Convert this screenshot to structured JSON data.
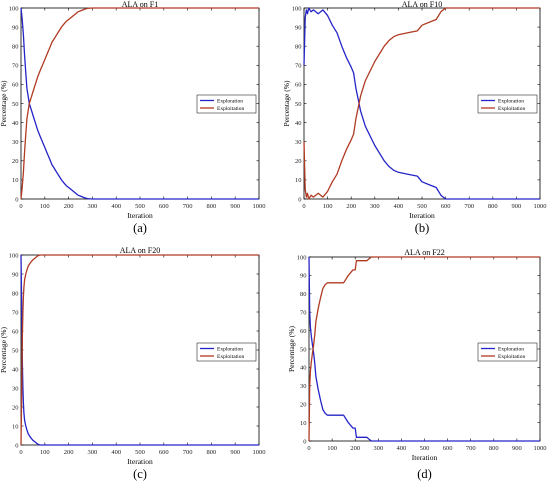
{
  "colors": {
    "exploration": "#2424c8",
    "exploitation": "#b03a22",
    "axis": "#000000",
    "grid_bg": "#ffffff",
    "tick_text": "#222222"
  },
  "chart_data": [
    {
      "type": "line",
      "panel_label": "(a)",
      "title": "ALA on F1",
      "xlabel": "Iteration",
      "ylabel": "Percentage (%)",
      "xlim": [
        0,
        1000
      ],
      "ylim": [
        0,
        100
      ],
      "xticks": [
        0,
        100,
        200,
        300,
        400,
        500,
        600,
        700,
        800,
        900,
        1000
      ],
      "yticks": [
        0,
        10,
        20,
        30,
        40,
        50,
        60,
        70,
        80,
        90,
        100
      ],
      "grid": false,
      "legend_position": "center-right",
      "series": [
        {
          "name": "Exploration",
          "color_key": "exploration",
          "x": [
            0,
            5,
            10,
            15,
            20,
            25,
            30,
            35,
            40,
            45,
            50,
            60,
            70,
            80,
            90,
            100,
            110,
            120,
            130,
            140,
            150,
            160,
            170,
            180,
            190,
            200,
            210,
            220,
            230,
            240,
            250,
            260,
            270,
            280,
            300,
            1000
          ],
          "y": [
            100,
            94,
            86,
            75,
            66,
            58,
            54,
            50,
            48,
            46,
            44,
            40,
            36,
            33,
            30,
            27,
            24,
            21,
            18,
            16,
            14,
            12,
            10,
            8.5,
            7,
            6,
            5,
            4,
            3,
            2,
            1.5,
            1,
            0.5,
            0.2,
            0,
            0
          ]
        },
        {
          "name": "Exploitation",
          "color_key": "exploitation",
          "x": [
            0,
            5,
            10,
            15,
            20,
            25,
            30,
            35,
            40,
            45,
            50,
            60,
            70,
            80,
            90,
            100,
            110,
            120,
            130,
            140,
            150,
            160,
            170,
            180,
            190,
            200,
            210,
            220,
            230,
            240,
            250,
            260,
            270,
            280,
            300,
            1000
          ],
          "y": [
            0,
            6,
            14,
            25,
            34,
            42,
            46,
            50,
            52,
            54,
            56,
            60,
            64,
            67,
            70,
            73,
            76,
            79,
            82,
            84,
            86,
            88,
            90,
            91.5,
            93,
            94,
            95,
            96,
            97,
            98,
            98.5,
            99,
            99.5,
            99.8,
            100,
            100
          ]
        }
      ]
    },
    {
      "type": "line",
      "panel_label": "(b)",
      "title": "ALA on F10",
      "xlabel": "Iteration",
      "ylabel": "Percentage (%)",
      "xlim": [
        0,
        1000
      ],
      "ylim": [
        0,
        100
      ],
      "xticks": [
        0,
        100,
        200,
        300,
        400,
        500,
        600,
        700,
        800,
        900,
        1000
      ],
      "yticks": [
        0,
        10,
        20,
        30,
        40,
        50,
        60,
        70,
        80,
        90,
        100
      ],
      "grid": false,
      "legend_position": "center-right",
      "series": [
        {
          "name": "Exploration",
          "color_key": "exploration",
          "x": [
            0,
            5,
            10,
            15,
            20,
            30,
            40,
            60,
            80,
            100,
            120,
            140,
            160,
            180,
            200,
            210,
            220,
            230,
            240,
            250,
            260,
            280,
            300,
            320,
            340,
            360,
            380,
            400,
            440,
            480,
            500,
            540,
            560,
            580,
            600,
            1000
          ],
          "y": [
            70,
            95,
            99,
            97,
            100,
            98,
            99,
            97,
            99,
            96,
            91,
            87,
            80,
            74,
            69,
            66,
            58,
            52,
            46,
            42,
            38,
            33,
            28,
            24,
            20,
            17,
            15,
            14,
            13,
            12,
            9,
            7,
            6,
            2,
            0,
            0
          ]
        },
        {
          "name": "Exploitation",
          "color_key": "exploitation",
          "x": [
            0,
            5,
            10,
            15,
            20,
            30,
            40,
            60,
            80,
            100,
            120,
            140,
            160,
            180,
            200,
            210,
            220,
            230,
            240,
            250,
            260,
            280,
            300,
            320,
            340,
            360,
            380,
            400,
            440,
            480,
            500,
            540,
            560,
            580,
            600,
            1000
          ],
          "y": [
            30,
            5,
            1,
            3,
            0,
            2,
            1,
            3,
            1,
            4,
            9,
            13,
            20,
            26,
            31,
            34,
            42,
            48,
            54,
            58,
            62,
            67,
            72,
            76,
            80,
            83,
            85,
            86,
            87,
            88,
            91,
            93,
            94,
            98,
            100,
            100
          ]
        }
      ]
    },
    {
      "type": "line",
      "panel_label": "(c)",
      "title": "ALA on F20",
      "xlabel": "Iteration",
      "ylabel": "Percentage (%)",
      "xlim": [
        0,
        1000
      ],
      "ylim": [
        0,
        100
      ],
      "xticks": [
        0,
        100,
        200,
        300,
        400,
        500,
        600,
        700,
        800,
        900,
        1000
      ],
      "yticks": [
        0,
        10,
        20,
        30,
        40,
        50,
        60,
        70,
        80,
        90,
        100
      ],
      "grid": false,
      "legend_position": "center-right",
      "series": [
        {
          "name": "Exploration",
          "color_key": "exploration",
          "x": [
            0,
            2,
            4,
            6,
            8,
            10,
            12,
            15,
            20,
            25,
            30,
            40,
            50,
            60,
            70,
            80,
            1000
          ],
          "y": [
            100,
            80,
            60,
            42,
            30,
            22,
            17,
            13,
            10,
            8,
            6,
            4,
            2.5,
            1.5,
            0.5,
            0,
            0
          ]
        },
        {
          "name": "Exploitation",
          "color_key": "exploitation",
          "x": [
            0,
            2,
            4,
            6,
            8,
            10,
            12,
            15,
            20,
            25,
            30,
            40,
            50,
            60,
            70,
            80,
            1000
          ],
          "y": [
            0,
            20,
            40,
            58,
            70,
            78,
            83,
            87,
            90,
            92,
            94,
            96,
            97.5,
            98.5,
            99.5,
            100,
            100
          ]
        }
      ]
    },
    {
      "type": "line",
      "panel_label": "(d)",
      "title": "ALA on F22",
      "xlabel": "Iteration",
      "ylabel": "Percentage (%)",
      "xlim": [
        0,
        1000
      ],
      "ylim": [
        0,
        100
      ],
      "xticks": [
        0,
        100,
        200,
        300,
        400,
        500,
        600,
        700,
        800,
        900,
        1000
      ],
      "yticks": [
        0,
        10,
        20,
        30,
        40,
        50,
        60,
        70,
        80,
        90,
        100
      ],
      "grid": false,
      "legend_position": "center-right",
      "series": [
        {
          "name": "Exploration",
          "color_key": "exploration",
          "x": [
            0,
            3,
            6,
            10,
            15,
            20,
            25,
            30,
            40,
            50,
            60,
            70,
            80,
            100,
            120,
            150,
            170,
            190,
            200,
            205,
            210,
            250,
            260,
            270,
            1000
          ],
          "y": [
            100,
            70,
            62,
            57,
            52,
            48,
            42,
            35,
            28,
            22,
            17,
            15,
            14,
            14,
            14,
            14,
            10,
            7,
            7,
            2,
            2,
            2,
            1,
            0,
            0
          ]
        },
        {
          "name": "Exploitation",
          "color_key": "exploitation",
          "x": [
            0,
            3,
            6,
            10,
            15,
            20,
            25,
            30,
            40,
            50,
            60,
            70,
            80,
            100,
            120,
            150,
            170,
            190,
            200,
            205,
            210,
            250,
            260,
            270,
            1000
          ],
          "y": [
            0,
            30,
            38,
            43,
            48,
            52,
            58,
            65,
            72,
            78,
            83,
            85,
            86,
            86,
            86,
            86,
            90,
            93,
            93,
            98,
            98,
            98,
            99,
            100,
            100
          ]
        }
      ]
    }
  ]
}
